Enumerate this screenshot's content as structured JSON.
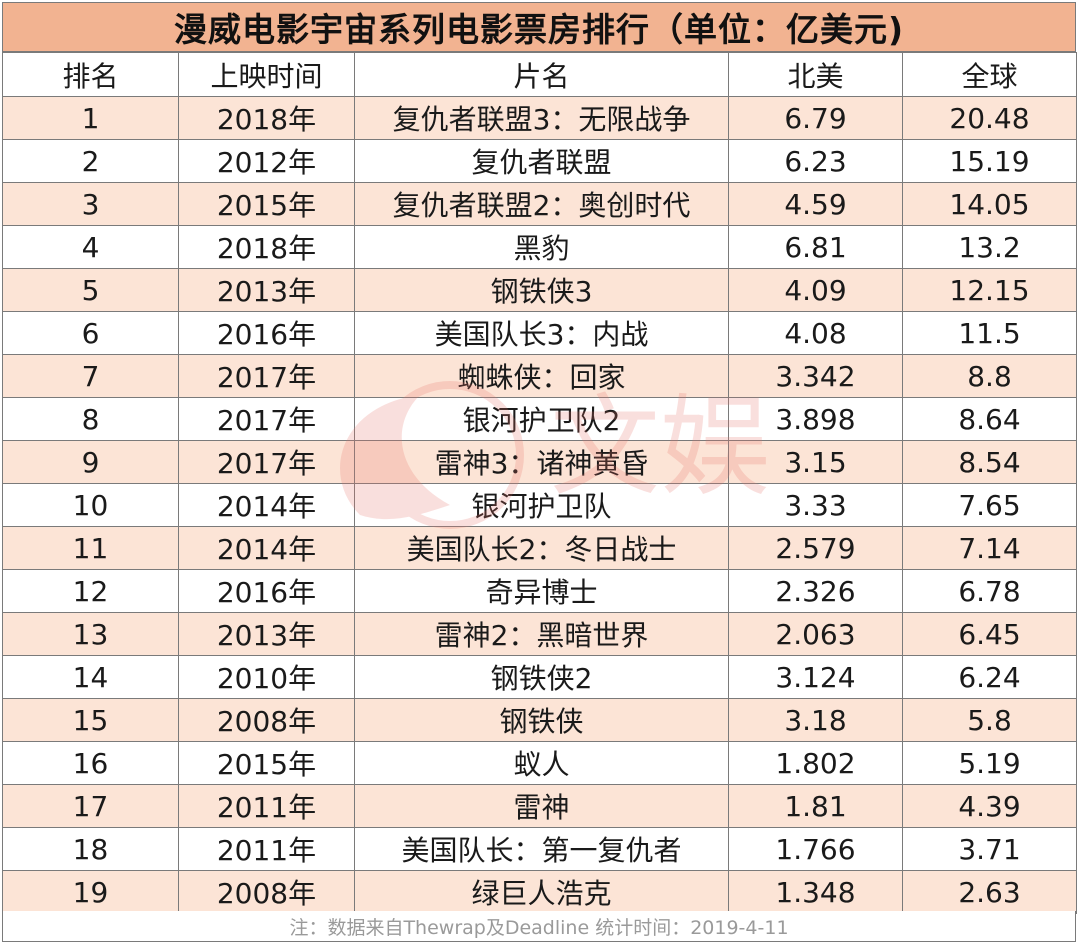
{
  "title": "漫威电影宇宙系列电影票房排行（单位：亿美元)",
  "columns": [
    "排名",
    "上映时间",
    "片名",
    "北美",
    "全球"
  ],
  "rows": [
    [
      "1",
      "2018年",
      "复仇者联盟3：无限战争",
      "6.79",
      "20.48"
    ],
    [
      "2",
      "2012年",
      "复仇者联盟",
      "6.23",
      "15.19"
    ],
    [
      "3",
      "2015年",
      "复仇者联盟2：奥创时代",
      "4.59",
      "14.05"
    ],
    [
      "4",
      "2018年",
      "黑豹",
      "6.81",
      "13.2"
    ],
    [
      "5",
      "2013年",
      "钢铁侠3",
      "4.09",
      "12.15"
    ],
    [
      "6",
      "2016年",
      "美国队长3：内战",
      "4.08",
      "11.5"
    ],
    [
      "7",
      "2017年",
      "蜘蛛侠：回家",
      "3.342",
      "8.8"
    ],
    [
      "8",
      "2017年",
      "银河护卫队2",
      "3.898",
      "8.64"
    ],
    [
      "9",
      "2017年",
      "雷神3：诸神黄昏",
      "3.15",
      "8.54"
    ],
    [
      "10",
      "2014年",
      "银河护卫队",
      "3.33",
      "7.65"
    ],
    [
      "11",
      "2014年",
      "美国队长2：冬日战士",
      "2.579",
      "7.14"
    ],
    [
      "12",
      "2016年",
      "奇异博士",
      "2.326",
      "6.78"
    ],
    [
      "13",
      "2013年",
      "雷神2：黑暗世界",
      "2.063",
      "6.45"
    ],
    [
      "14",
      "2010年",
      "钢铁侠2",
      "3.124",
      "6.24"
    ],
    [
      "15",
      "2008年",
      "钢铁侠",
      "3.18",
      "5.8"
    ],
    [
      "16",
      "2015年",
      "蚁人",
      "1.802",
      "5.19"
    ],
    [
      "17",
      "2011年",
      "雷神",
      "1.81",
      "4.39"
    ],
    [
      "18",
      "2011年",
      "美国队长：第一复仇者",
      "1.766",
      "3.71"
    ],
    [
      "19",
      "2008年",
      "绿巨人浩克",
      "1.348",
      "2.63"
    ]
  ],
  "footnote": "注：数据来自Thewrap及Deadline  统计时间：2019-4-11",
  "watermark": {
    "text": "文娱"
  },
  "colors": {
    "title_bg": "#f2b391",
    "row_shade": "#fce4d6",
    "border": "#7a7a7a",
    "footnote_text": "#9a9a9a",
    "watermark": "#e8736a"
  }
}
